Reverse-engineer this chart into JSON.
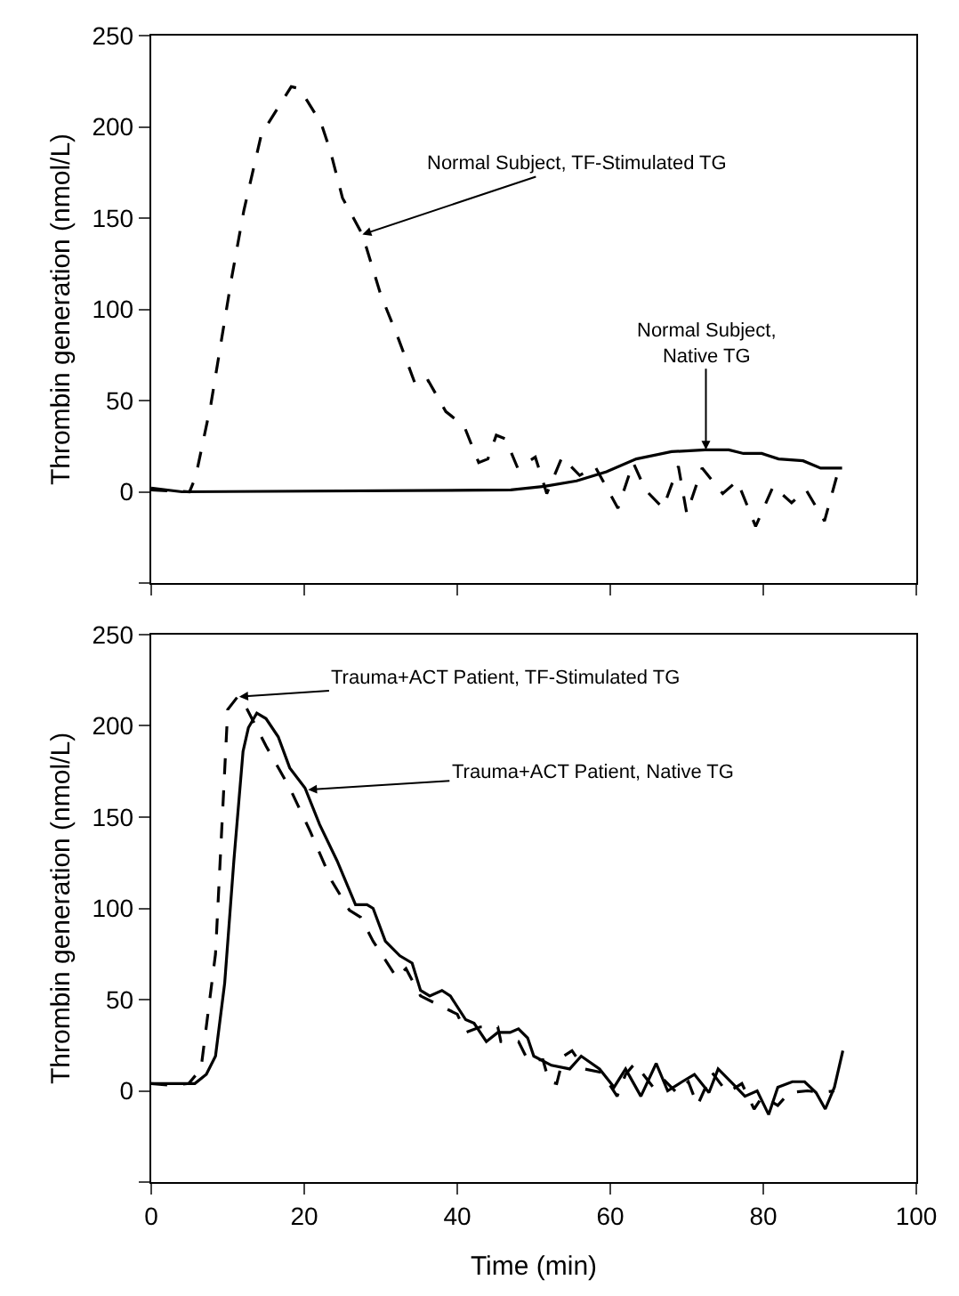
{
  "chart_data": [
    {
      "type": "line",
      "ylabel": "Thrombin generation (nmol/L)",
      "xlim": [
        0,
        100
      ],
      "xticks": [
        {
          "value": 0,
          "label": null
        },
        {
          "value": 20,
          "label": null
        },
        {
          "value": 40,
          "label": null
        },
        {
          "value": 60,
          "label": null
        },
        {
          "value": 80,
          "label": null
        },
        {
          "value": 100,
          "label": null
        }
      ],
      "ylim": [
        -50,
        250
      ],
      "yticks": [
        {
          "value": -50,
          "label": null
        },
        0,
        50,
        100,
        150,
        200,
        250
      ],
      "tick_labels": "y",
      "marker": "none",
      "series": [
        {
          "color": "#000000",
          "line_style": "dashed",
          "x": [
            0,
            5,
            5.8,
            7.8,
            10.5,
            12.1,
            14.4,
            15.6,
            18.3,
            19.4,
            22.2,
            23.4,
            25,
            27.6,
            30,
            32.3,
            34.6,
            36.2,
            38.5,
            40.9,
            42.8,
            44,
            45.1,
            46.3,
            47.9,
            50.2,
            51.7,
            53.7,
            56,
            58,
            61,
            63,
            64.6,
            66.9,
            68.9,
            70,
            72,
            74.7,
            76.6,
            79,
            81.3,
            83.7,
            85.6,
            88,
            89.9
          ],
          "values": [
            1,
            0,
            8,
            48,
            117,
            154,
            196,
            204,
            222,
            221,
            202,
            187,
            161,
            141,
            108,
            84,
            58,
            61,
            44,
            36,
            16,
            18,
            31,
            29,
            13,
            19,
            -1,
            19,
            9,
            14,
            -9,
            16,
            1,
            -9,
            14,
            -12,
            13,
            -1,
            6,
            -19,
            3,
            -6,
            1,
            -16,
            13
          ]
        },
        {
          "color": "#000000",
          "line_style": "solid",
          "x": [
            0,
            4,
            47,
            51.4,
            55.6,
            59.5,
            63.4,
            68,
            72.4,
            75.5,
            77.4,
            79.8,
            82,
            85.2,
            87.5,
            90.3
          ],
          "values": [
            2,
            0,
            1,
            3,
            6,
            11,
            18,
            22,
            23,
            23,
            21,
            21,
            18,
            17,
            13,
            13
          ]
        }
      ],
      "annotations": [
        {
          "text": "Normal Subject, TF-Stimulated TG",
          "x": 27.6,
          "y": 141
        },
        {
          "text": "Normal Subject,\nNative TG",
          "x": 72.5,
          "y": 23
        }
      ]
    },
    {
      "type": "line",
      "xlabel": "Time (min)",
      "ylabel": "Thrombin generation (nmol/L)",
      "xlim": [
        0,
        100
      ],
      "xticks": [
        0,
        20,
        40,
        60,
        80,
        100
      ],
      "ylim": [
        -50,
        250
      ],
      "yticks": [
        {
          "value": -50,
          "label": null
        },
        0,
        50,
        100,
        150,
        200,
        250
      ],
      "marker": "none",
      "series": [
        {
          "color": "#000000",
          "line_style": "dashed",
          "x": [
            0,
            2.6,
            4.9,
            6.5,
            8.4,
            10,
            11.3,
            12.3,
            15,
            18.1,
            20.8,
            23.6,
            25.9,
            27.4,
            29,
            32.1,
            33.3,
            35.2,
            37.6,
            40,
            41.1,
            43,
            45.3,
            45.7,
            48,
            49.2,
            51.2,
            52,
            53,
            53.9,
            55,
            56.6,
            58.9,
            60.9,
            62,
            63.2,
            65.6,
            66.8,
            68.7,
            70.2,
            71.4,
            73.3,
            75.3,
            77.2,
            78.8,
            79.9,
            81.9,
            83.4,
            85.8,
            87.7,
            89.3
          ],
          "values": [
            4,
            3,
            4,
            12,
            75,
            209,
            216,
            211,
            189,
            166,
            142,
            115,
            99,
            95,
            82,
            62,
            67,
            52,
            47,
            42,
            32,
            35,
            35,
            27,
            27,
            17,
            17,
            5,
            4,
            19,
            22,
            12,
            10,
            -3,
            9,
            15,
            2,
            7,
            -1,
            5,
            -8,
            10,
            -1,
            4,
            -10,
            -3,
            -8,
            -1,
            0,
            -1,
            0
          ]
        },
        {
          "color": "#000000",
          "line_style": "solid",
          "x": [
            0,
            5.7,
            7.2,
            8.4,
            9.6,
            10.8,
            12,
            12.7,
            13.8,
            15,
            16.6,
            18.1,
            20.1,
            22,
            24.3,
            26.7,
            28.2,
            29,
            30.6,
            32.5,
            34.1,
            35.2,
            36.4,
            38,
            39.1,
            41.1,
            42.2,
            43.8,
            45.3,
            46.9,
            48,
            49.2,
            50,
            52.3,
            54.7,
            56.2,
            58.6,
            60.5,
            62,
            64,
            66,
            67.5,
            69.4,
            71,
            72.9,
            74.1,
            76,
            77.6,
            79.2,
            80.7,
            81.9,
            83.8,
            85.4,
            86.9,
            88.1,
            89.3,
            90.4
          ],
          "values": [
            4,
            4,
            9,
            19,
            59,
            126,
            186,
            199,
            207,
            204,
            194,
            177,
            166,
            146,
            126,
            102,
            102,
            100,
            82,
            74,
            70,
            55,
            52,
            55,
            52,
            39,
            37,
            27,
            32,
            32,
            34,
            29,
            19,
            14,
            12,
            19,
            12,
            2,
            12,
            -3,
            15,
            0,
            5,
            9,
            -1,
            12,
            4,
            -3,
            0,
            -13,
            2,
            5,
            5,
            -1,
            -10,
            2,
            22
          ]
        }
      ],
      "annotations": [
        {
          "text": "Trauma+ACT Patient, TF-Stimulated TG",
          "x": 11.5,
          "y": 216
        },
        {
          "text": "Trauma+ACT Patient, Native TG",
          "x": 20.5,
          "y": 165
        }
      ]
    }
  ]
}
